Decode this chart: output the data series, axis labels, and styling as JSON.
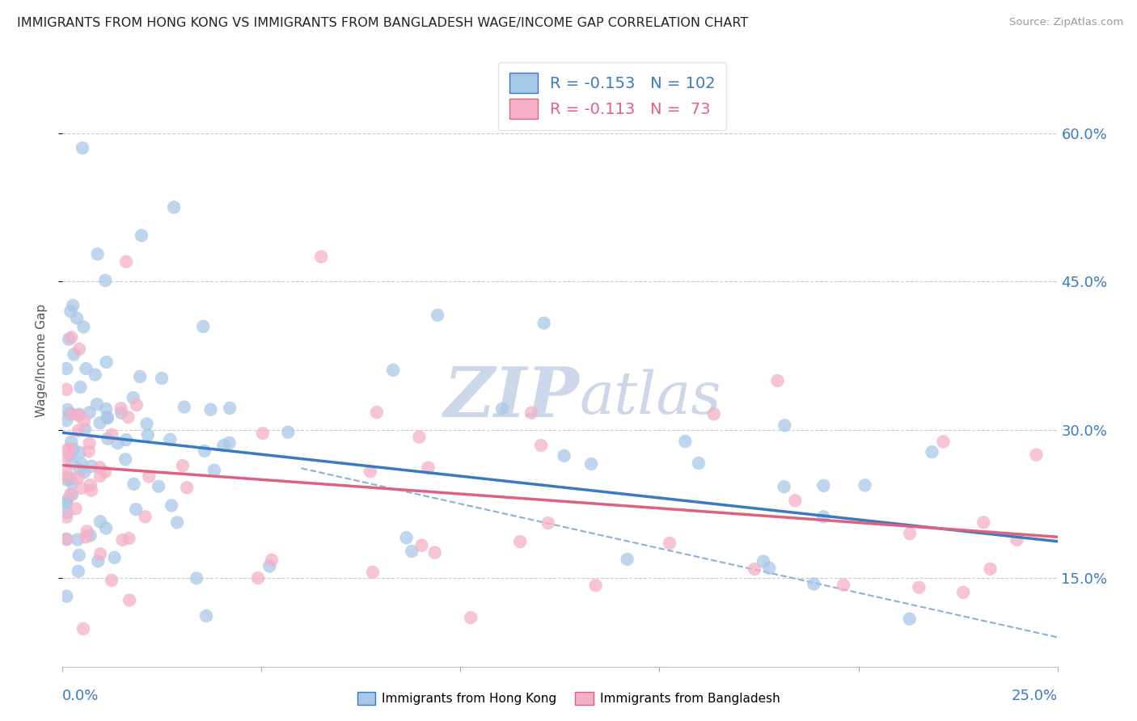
{
  "title": "IMMIGRANTS FROM HONG KONG VS IMMIGRANTS FROM BANGLADESH WAGE/INCOME GAP CORRELATION CHART",
  "source": "Source: ZipAtlas.com",
  "ylabel": "Wage/Income Gap",
  "y_ticks": [
    0.15,
    0.3,
    0.45,
    0.6
  ],
  "y_tick_labels": [
    "15.0%",
    "30.0%",
    "45.0%",
    "60.0%"
  ],
  "x_range": [
    0.0,
    0.25
  ],
  "y_range": [
    0.06,
    0.68
  ],
  "hk_R": -0.153,
  "hk_N": 102,
  "bd_R": -0.113,
  "bd_N": 73,
  "hk_color": "#a8c8e8",
  "bd_color": "#f4b0c8",
  "hk_line_color": "#3a7abf",
  "bd_line_color": "#e06080",
  "dashed_line_color": "#8ab0d8",
  "background_color": "#ffffff",
  "watermark_color": "#ccd8ea",
  "legend_label_hk": "Immigrants from Hong Kong",
  "legend_label_bd": "Immigrants from Bangladesh"
}
